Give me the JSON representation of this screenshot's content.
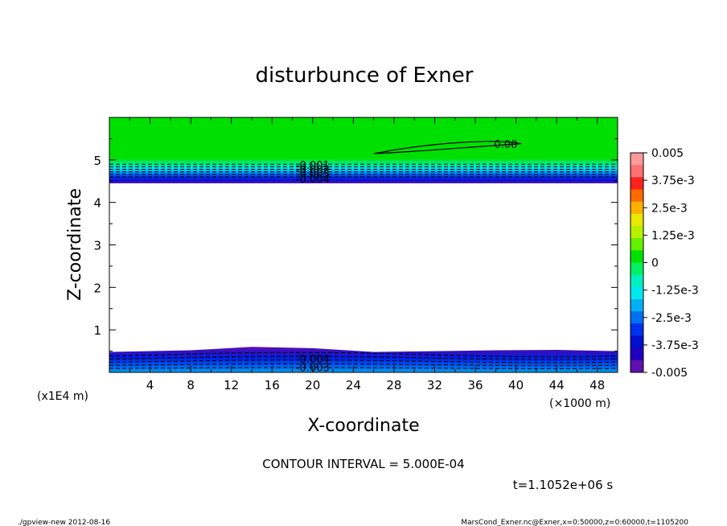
{
  "chart_data": {
    "type": "contour",
    "title": "disturbunce of Exner",
    "xlabel": "X-coordinate",
    "ylabel": "Z-coordinate",
    "x_unit": "(×1000 m)",
    "y_unit": "(x1E4 m)",
    "xlim": [
      0,
      50
    ],
    "ylim": [
      0,
      6
    ],
    "x_ticks": [
      4,
      8,
      12,
      16,
      20,
      24,
      28,
      32,
      36,
      40,
      44,
      48
    ],
    "y_ticks": [
      1,
      2,
      3,
      4,
      5
    ],
    "contour_interval_text": "CONTOUR INTERVAL = 5.000E-04",
    "time_text": "t=1.1052e+06 s",
    "colorbar": {
      "range": [
        -0.005,
        0.005
      ],
      "labels": [
        "0.005",
        "3.75e-3",
        "2.5e-3",
        "1.25e-3",
        "0",
        "-1.25e-3",
        "-2.5e-3",
        "-3.75e-3",
        "-0.005"
      ],
      "levels": [
        0.005,
        0.00375,
        0.0025,
        0.00125,
        0,
        -0.00125,
        -0.0025,
        -0.00375,
        -0.005
      ],
      "colors": [
        "#ff9a9a",
        "#ff7070",
        "#ff2020",
        "#ff6a00",
        "#ffb000",
        "#e8e800",
        "#b8f000",
        "#60f000",
        "#00e000",
        "#00f060",
        "#00f0c0",
        "#00e8f0",
        "#00b0f0",
        "#0070f0",
        "#0030f0",
        "#0010d0",
        "#2000c0",
        "#6010b0"
      ]
    },
    "contour_labels": [
      {
        "text": "0.00",
        "x": 39,
        "z": 5.38
      },
      {
        "text": "-0.001",
        "x": 20,
        "z": 4.88
      },
      {
        "text": "-0.002",
        "x": 20,
        "z": 4.78
      },
      {
        "text": "-0.003",
        "x": 20,
        "z": 4.68
      },
      {
        "text": "-0.004",
        "x": 20,
        "z": 4.56
      },
      {
        "text": "-0.004",
        "x": 20,
        "z": 0.32
      },
      {
        "text": "-0.003",
        "x": 20,
        "z": 0.12
      }
    ],
    "regions": {
      "upper_band": {
        "z_from": 4.45,
        "z_to": 6.0,
        "values_at_edges": [
          -0.005,
          0.0
        ]
      },
      "lower_band": {
        "z_from": 0.0,
        "z_to": 0.55,
        "values_at_edges": [
          -0.0025,
          -0.005
        ]
      }
    },
    "grid": false
  },
  "footer": {
    "left": "./gpview-new  2012-08-16",
    "right": "MarsCond_Exner.nc@Exner,x=0:50000,z=0:60000,t=1105200"
  }
}
